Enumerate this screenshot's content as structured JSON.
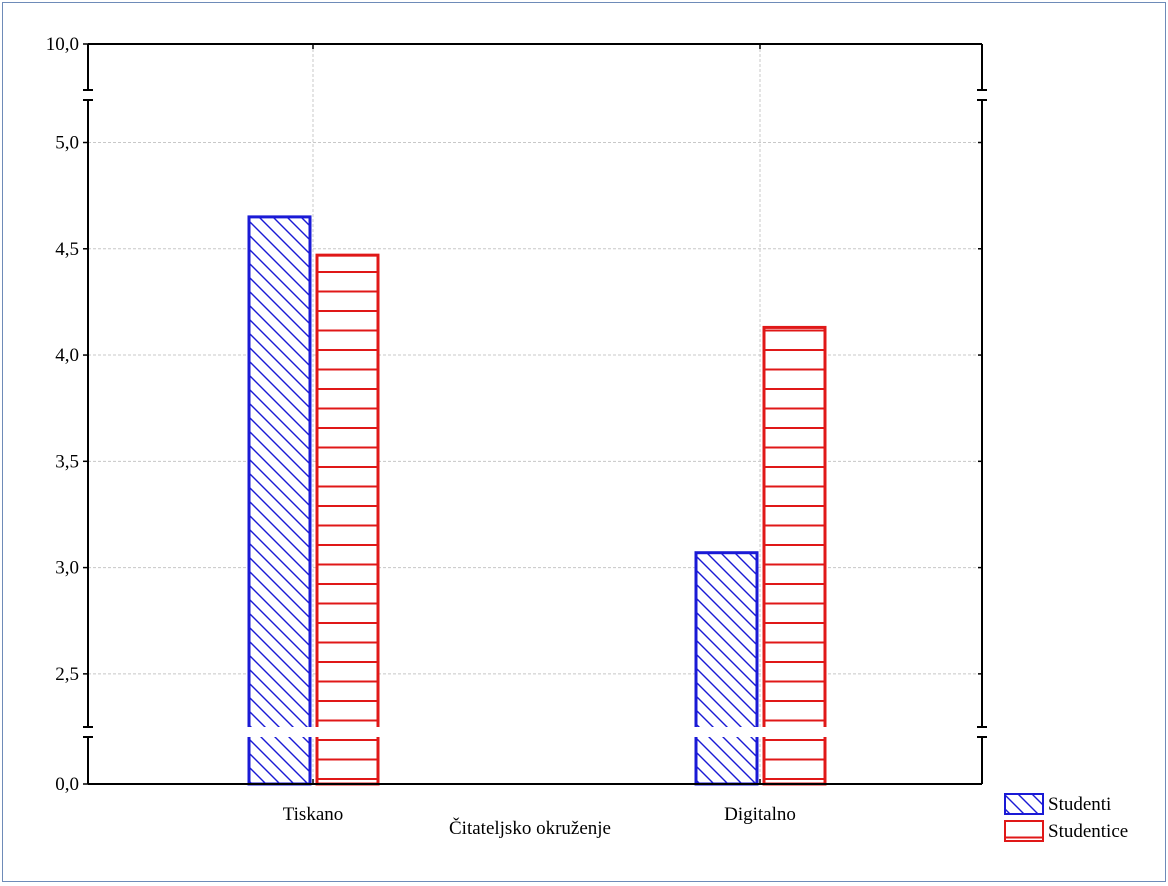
{
  "chart_data": {
    "type": "bar",
    "xlabel": "Čitateljsko okruženje",
    "ylabel": "",
    "categories": [
      "Tiskano",
      "Digitalno"
    ],
    "series": [
      {
        "name": "Studenti",
        "values": [
          4.65,
          3.07
        ],
        "color": "#1a1ad6",
        "pattern": "diagonal-hatch"
      },
      {
        "name": "Studentice",
        "values": [
          4.47,
          4.13
        ],
        "color": "#e01818",
        "pattern": "horizontal-lines"
      }
    ],
    "yticks": [
      "0,0",
      "2,5",
      "3,0",
      "3,5",
      "4,0",
      "4,5",
      "5,0",
      "10,0"
    ],
    "ylim": [
      0,
      10
    ],
    "y_break": [
      2.25,
      5.2
    ],
    "grid": true,
    "legend_position": "bottom-right"
  }
}
